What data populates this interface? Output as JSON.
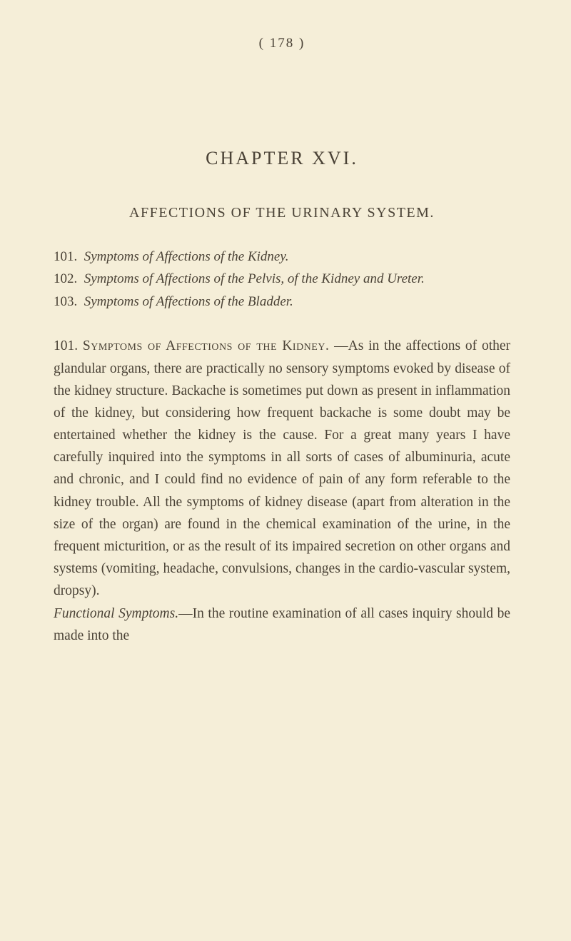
{
  "page_number": "( 178 )",
  "chapter_heading": "CHAPTER XVI.",
  "section_heading": "AFFECTIONS OF THE URINARY SYSTEM.",
  "toc": {
    "item1_num": "101.",
    "item1_text": "Symptoms of Affections of the Kidney.",
    "item2_num": "102.",
    "item2_text": "Symptoms of Affections of the Pelvis, of the Kidney and Ureter.",
    "item3_num": "103.",
    "item3_text": "Symptoms of Affections of the Bladder."
  },
  "body": {
    "para1_num": "101.",
    "para1_heading": "Symptoms of Affections of the Kidney.",
    "para1_text": "—As in the affections of other glandular organs, there are practically no sensory symptoms evoked by disease of the kidney structure. Backache is sometimes put down as present in inflammation of the kidney, but considering how frequent backache is some doubt may be entertained whether the kidney is the cause. For a great many years I have carefully inquired into the symptoms in all sorts of cases of albuminuria, acute and chronic, and I could find no evidence of pain of any form referable to the kidney trouble. All the symptoms of kidney disease (apart from alteration in the size of the organ) are found in the chemical examination of the urine, in the frequent micturition, or as the result of its impaired secretion on other organs and systems (vomiting, headache, convulsions, changes in the cardio-vascular system, dropsy).",
    "para2_label": "Functional Symptoms.",
    "para2_text": "—In the routine examination of all cases inquiry should be made into the"
  },
  "colors": {
    "background": "#f5eed8",
    "text": "#4a4236"
  }
}
